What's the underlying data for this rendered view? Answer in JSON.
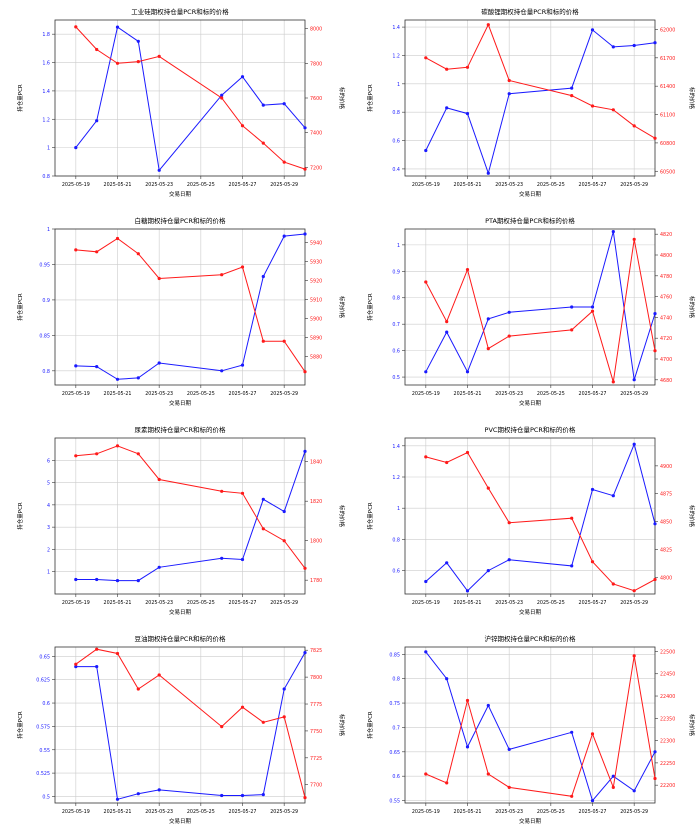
{
  "colors": {
    "pcr": "#1a1aff",
    "price": "#ff1a1a",
    "axis": "#333333",
    "grid": "#cccccc"
  },
  "x_ticks": [
    "2025-05-19",
    "2025-05-21",
    "2025-05-23",
    "2025-05-25",
    "2025-05-27",
    "2025-05-29"
  ],
  "chart_data": [
    {
      "type": "line",
      "title": "工业硅期权持仓量PCR和标的价格",
      "xlabel": "交易日期",
      "ylabel_left": "持仓量PCR",
      "ylabel_right": "标的价格",
      "x": [
        "2025-05-19",
        "2025-05-20",
        "2025-05-21",
        "2025-05-22",
        "2025-05-23",
        "2025-05-26",
        "2025-05-27",
        "2025-05-28",
        "2025-05-29",
        "2025-05-30"
      ],
      "xlim": [
        "2025-05-18",
        "2025-05-30"
      ],
      "ylim_left": [
        0.8,
        1.9
      ],
      "yticks_left": [
        0.8,
        1.0,
        1.2,
        1.4,
        1.6,
        1.8
      ],
      "ylim_right": [
        7150,
        8050
      ],
      "yticks_right": [
        7200,
        7400,
        7600,
        7800,
        8000
      ],
      "series": [
        {
          "name": "持仓量PCR",
          "axis": "left",
          "values": [
            1.0,
            1.19,
            1.85,
            1.75,
            0.84,
            1.37,
            1.5,
            1.3,
            1.31,
            1.14
          ]
        },
        {
          "name": "标的价格",
          "axis": "right",
          "values": [
            8010,
            7880,
            7800,
            7810,
            7840,
            7600,
            7440,
            7340,
            7230,
            7190
          ]
        }
      ]
    },
    {
      "type": "line",
      "title": "碳酸锂期权持仓量PCR和标的价格",
      "xlabel": "交易日期",
      "ylabel_left": "持仓量PCR",
      "ylabel_right": "标的价格",
      "x": [
        "2025-05-19",
        "2025-05-20",
        "2025-05-21",
        "2025-05-22",
        "2025-05-23",
        "2025-05-26",
        "2025-05-27",
        "2025-05-28",
        "2025-05-29",
        "2025-05-30"
      ],
      "xlim": [
        "2025-05-18",
        "2025-05-30"
      ],
      "ylim_left": [
        0.35,
        1.45
      ],
      "yticks_left": [
        0.4,
        0.6,
        0.8,
        1.0,
        1.2,
        1.4
      ],
      "ylim_right": [
        60450,
        62100
      ],
      "yticks_right": [
        60500,
        60800,
        61100,
        61400,
        61700,
        62000
      ],
      "series": [
        {
          "name": "持仓量PCR",
          "axis": "left",
          "values": [
            0.53,
            0.83,
            0.79,
            0.37,
            0.93,
            0.97,
            1.38,
            1.26,
            1.27,
            1.29
          ]
        },
        {
          "name": "标的价格",
          "axis": "right",
          "values": [
            61700,
            61580,
            61600,
            62050,
            61460,
            61300,
            61190,
            61150,
            60980,
            60850
          ]
        }
      ]
    },
    {
      "type": "line",
      "title": "白糖期权持仓量PCR和标的价格",
      "xlabel": "交易日期",
      "ylabel_left": "持仓量PCR",
      "ylabel_right": "标的价格",
      "x": [
        "2025-05-19",
        "2025-05-20",
        "2025-05-21",
        "2025-05-22",
        "2025-05-23",
        "2025-05-26",
        "2025-05-27",
        "2025-05-28",
        "2025-05-29",
        "2025-05-30"
      ],
      "xlim": [
        "2025-05-18",
        "2025-05-30"
      ],
      "ylim_left": [
        0.78,
        1.0
      ],
      "yticks_left": [
        0.8,
        0.85,
        0.9,
        0.95,
        1.0
      ],
      "ylim_right": [
        5865,
        5947
      ],
      "yticks_right": [
        5880,
        5890,
        5900,
        5910,
        5920,
        5930,
        5940
      ],
      "series": [
        {
          "name": "持仓量PCR",
          "axis": "left",
          "values": [
            0.807,
            0.806,
            0.788,
            0.79,
            0.811,
            0.8,
            0.808,
            0.933,
            0.99,
            0.993
          ]
        },
        {
          "name": "标的价格",
          "axis": "right",
          "values": [
            5936,
            5935,
            5942,
            5934,
            5921,
            5923,
            5927,
            5888,
            5888,
            5872
          ]
        }
      ]
    },
    {
      "type": "line",
      "title": "PTA期权持仓量PCR和标的价格",
      "xlabel": "交易日期",
      "ylabel_left": "持仓量PCR",
      "ylabel_right": "标的价格",
      "x": [
        "2025-05-19",
        "2025-05-20",
        "2025-05-21",
        "2025-05-22",
        "2025-05-23",
        "2025-05-26",
        "2025-05-27",
        "2025-05-28",
        "2025-05-29",
        "2025-05-30"
      ],
      "xlim": [
        "2025-05-18",
        "2025-05-30"
      ],
      "ylim_left": [
        0.47,
        1.06
      ],
      "yticks_left": [
        0.5,
        0.6,
        0.7,
        0.8,
        0.9,
        1.0
      ],
      "ylim_right": [
        4675,
        4825
      ],
      "yticks_right": [
        4680,
        4700,
        4720,
        4740,
        4760,
        4780,
        4800,
        4820
      ],
      "series": [
        {
          "name": "持仓量PCR",
          "axis": "left",
          "values": [
            0.52,
            0.67,
            0.52,
            0.72,
            0.745,
            0.765,
            0.765,
            1.05,
            0.49,
            0.74
          ]
        },
        {
          "name": "标的价格",
          "axis": "right",
          "values": [
            4774,
            4736,
            4786,
            4710,
            4722,
            4728,
            4746,
            4678,
            4815,
            4708
          ]
        }
      ]
    },
    {
      "type": "line",
      "title": "尿素期权持仓量PCR和标的价格",
      "xlabel": "交易日期",
      "ylabel_left": "持仓量PCR",
      "ylabel_right": "标的价格",
      "x": [
        "2025-05-19",
        "2025-05-20",
        "2025-05-21",
        "2025-05-22",
        "2025-05-23",
        "2025-05-26",
        "2025-05-27",
        "2025-05-28",
        "2025-05-29",
        "2025-05-30"
      ],
      "xlim": [
        "2025-05-18",
        "2025-05-30"
      ],
      "ylim_left": [
        0.0,
        7.0
      ],
      "yticks_left": [
        1,
        2,
        3,
        4,
        5,
        6
      ],
      "ylim_right": [
        1773,
        1852
      ],
      "yticks_right": [
        1780,
        1800,
        1820,
        1840
      ],
      "series": [
        {
          "name": "持仓量PCR",
          "axis": "left",
          "values": [
            0.65,
            0.65,
            0.6,
            0.6,
            1.2,
            1.6,
            1.55,
            4.25,
            3.7,
            6.4
          ]
        },
        {
          "name": "标的价格",
          "axis": "right",
          "values": [
            1843,
            1844,
            1848,
            1844,
            1831,
            1825,
            1824,
            1806,
            1800,
            1786
          ]
        }
      ]
    },
    {
      "type": "line",
      "title": "PVC期权持仓量PCR和标的价格",
      "xlabel": "交易日期",
      "ylabel_left": "持仓量PCR",
      "ylabel_right": "标的价格",
      "x": [
        "2025-05-19",
        "2025-05-20",
        "2025-05-21",
        "2025-05-22",
        "2025-05-23",
        "2025-05-26",
        "2025-05-27",
        "2025-05-28",
        "2025-05-29",
        "2025-05-30"
      ],
      "xlim": [
        "2025-05-18",
        "2025-05-30"
      ],
      "ylim_left": [
        0.45,
        1.45
      ],
      "yticks_left": [
        0.6,
        0.8,
        1.0,
        1.2,
        1.4
      ],
      "ylim_right": [
        4785,
        4925
      ],
      "yticks_right": [
        4800,
        4825,
        4850,
        4875,
        4900
      ],
      "series": [
        {
          "name": "持仓量PCR",
          "axis": "left",
          "values": [
            0.53,
            0.65,
            0.47,
            0.6,
            0.67,
            0.63,
            1.12,
            1.08,
            1.41,
            0.9
          ]
        },
        {
          "name": "标的价格",
          "axis": "right",
          "values": [
            4908,
            4903,
            4912,
            4880,
            4849,
            4853,
            4814,
            4794,
            4788,
            4798
          ]
        }
      ]
    },
    {
      "type": "line",
      "title": "豆油期权持仓量PCR和标的价格",
      "xlabel": "交易日期",
      "ylabel_left": "持仓量PCR",
      "ylabel_right": "标的价格",
      "x": [
        "2025-05-19",
        "2025-05-20",
        "2025-05-21",
        "2025-05-22",
        "2025-05-23",
        "2025-05-26",
        "2025-05-27",
        "2025-05-28",
        "2025-05-29",
        "2025-05-30"
      ],
      "xlim": [
        "2025-05-18",
        "2025-05-30"
      ],
      "ylim_left": [
        0.493,
        0.66
      ],
      "yticks_left": [
        0.5,
        0.525,
        0.55,
        0.575,
        0.6,
        0.625,
        0.65
      ],
      "ylim_right": [
        7683,
        7828
      ],
      "yticks_right": [
        7700,
        7725,
        7750,
        7775,
        7800,
        7825
      ],
      "series": [
        {
          "name": "持仓量PCR",
          "axis": "left",
          "values": [
            0.639,
            0.639,
            0.497,
            0.503,
            0.507,
            0.501,
            0.501,
            0.502,
            0.615,
            0.654
          ]
        },
        {
          "name": "标的价格",
          "axis": "right",
          "values": [
            7812,
            7826,
            7822,
            7789,
            7802,
            7754,
            7772,
            7758,
            7763,
            7688
          ]
        }
      ]
    },
    {
      "type": "line",
      "title": "沪锌期权持仓量PCR和标的价格",
      "xlabel": "交易日期",
      "ylabel_left": "持仓量PCR",
      "ylabel_right": "标的价格",
      "x": [
        "2025-05-19",
        "2025-05-20",
        "2025-05-21",
        "2025-05-22",
        "2025-05-23",
        "2025-05-26",
        "2025-05-27",
        "2025-05-28",
        "2025-05-29",
        "2025-05-30"
      ],
      "xlim": [
        "2025-05-18",
        "2025-05-30"
      ],
      "ylim_left": [
        0.545,
        0.865
      ],
      "yticks_left": [
        0.55,
        0.6,
        0.65,
        0.7,
        0.75,
        0.8,
        0.85
      ],
      "ylim_right": [
        22160,
        22510
      ],
      "yticks_right": [
        22200,
        22250,
        22300,
        22350,
        22400,
        22450,
        22500
      ],
      "series": [
        {
          "name": "持仓量PCR",
          "axis": "left",
          "values": [
            0.855,
            0.8,
            0.66,
            0.745,
            0.655,
            0.69,
            0.55,
            0.6,
            0.57,
            0.65
          ]
        },
        {
          "name": "标的价格",
          "axis": "right",
          "values": [
            22225,
            22205,
            22390,
            22225,
            22195,
            22175,
            22315,
            22195,
            22490,
            22215
          ]
        }
      ]
    }
  ]
}
